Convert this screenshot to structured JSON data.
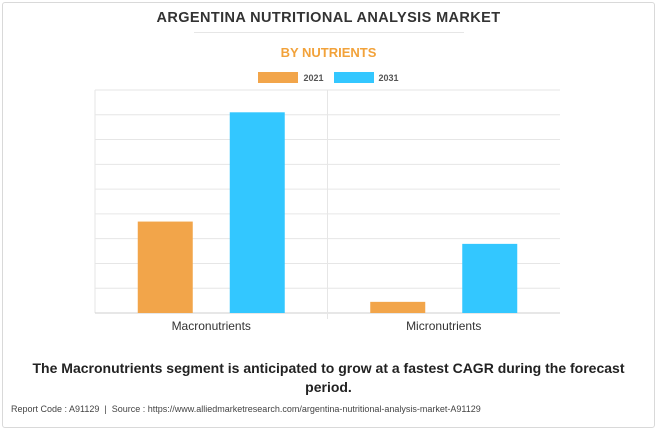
{
  "title": "ARGENTINA NUTRITIONAL ANALYSIS MARKET",
  "subtitle": "BY NUTRIENTS",
  "caption": "The Macronutrients segment is anticipated to grow at a fastest CAGR during the forecast period.",
  "footer": {
    "report_code": "Report Code : A91129",
    "separator": "|",
    "source": "Source : https://www.alliedmarketresearch.com/argentina-nutritional-analysis-market-A91129"
  },
  "colors": {
    "series_2021": "#f2a54a",
    "series_2031": "#33c7ff",
    "subtitle": "#f2a23a",
    "grid": "#e6e6e6"
  },
  "chart_data": {
    "type": "bar",
    "categories": [
      "Macronutrients",
      "Micronutrients"
    ],
    "series": [
      {
        "name": "2021",
        "values": [
          4.1,
          0.5
        ]
      },
      {
        "name": "2031",
        "values": [
          9.0,
          3.1
        ]
      }
    ],
    "ylim": [
      0,
      10
    ],
    "grid": true,
    "legend_position": "top-center",
    "xlabel": "",
    "ylabel": ""
  }
}
